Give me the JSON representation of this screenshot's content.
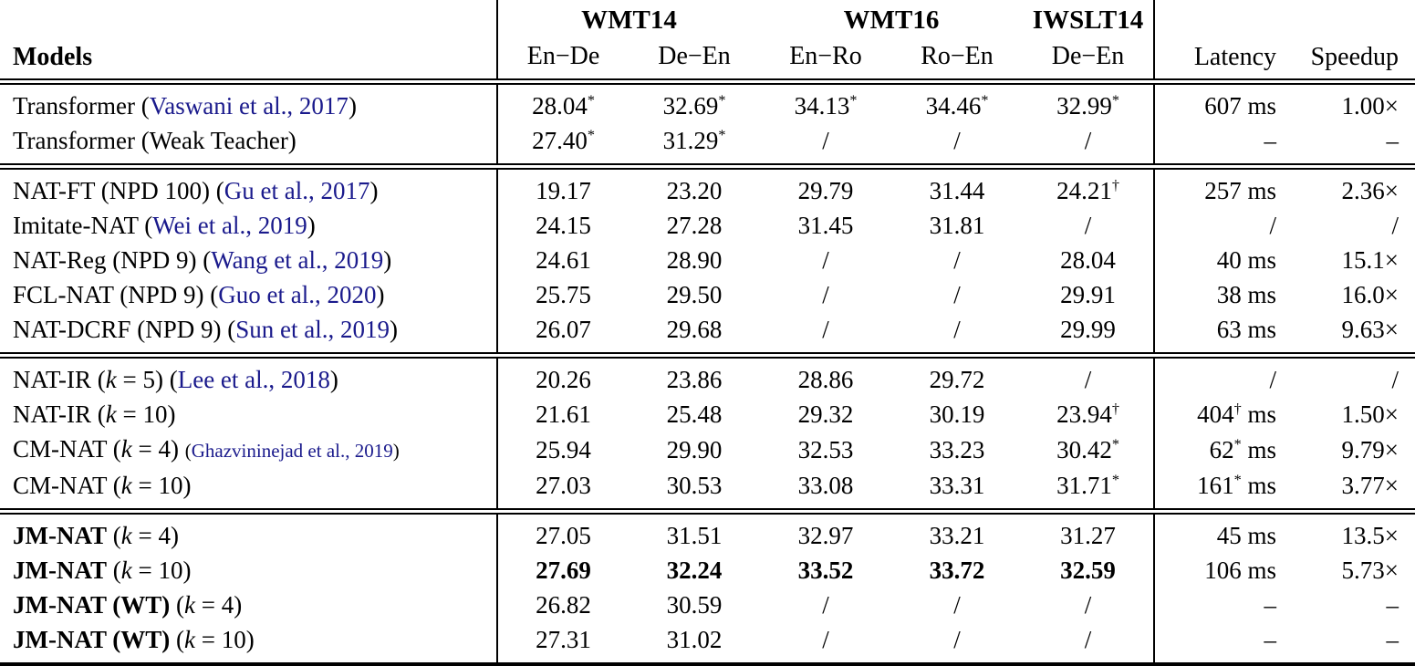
{
  "colors": {
    "citation": "#1a1a8c",
    "text": "#000000",
    "background": "#ffffff"
  },
  "table": {
    "models_label": "Models",
    "latency_label": "Latency",
    "speedup_label": "Speedup",
    "groups": [
      {
        "label": "WMT14",
        "span": 2
      },
      {
        "label": "WMT16",
        "span": 2
      },
      {
        "label": "IWSLT14",
        "span": 1
      }
    ],
    "subcols": [
      "En−De",
      "De−En",
      "En−Ro",
      "Ro−En",
      "De−En"
    ],
    "sections": [
      {
        "rows": [
          {
            "name": [
              {
                "t": "Transformer ("
              },
              {
                "t": "Vaswani et al., 2017",
                "c": "cite"
              },
              {
                "t": ")"
              }
            ],
            "cells": [
              {
                "t": "28.04",
                "s": "*"
              },
              {
                "t": "32.69",
                "s": "*"
              },
              {
                "t": "34.13",
                "s": "*"
              },
              {
                "t": "34.46",
                "s": "*"
              },
              {
                "t": "32.99",
                "s": "*"
              },
              {
                "t": "607",
                "u": "ms"
              },
              {
                "t": "1.00×"
              }
            ]
          },
          {
            "name": [
              {
                "t": "Transformer (Weak Teacher)"
              }
            ],
            "cells": [
              {
                "t": "27.40",
                "s": "*"
              },
              {
                "t": "31.29",
                "s": "*"
              },
              {
                "t": "/"
              },
              {
                "t": "/"
              },
              {
                "t": "/"
              },
              {
                "t": "–"
              },
              {
                "t": "–"
              }
            ]
          }
        ]
      },
      {
        "rows": [
          {
            "name": [
              {
                "t": "NAT-FT (NPD 100) ("
              },
              {
                "t": "Gu et al., 2017",
                "c": "cite"
              },
              {
                "t": ")"
              }
            ],
            "cells": [
              {
                "t": "19.17"
              },
              {
                "t": "23.20"
              },
              {
                "t": "29.79"
              },
              {
                "t": "31.44"
              },
              {
                "t": "24.21",
                "s": "†"
              },
              {
                "t": "257",
                "u": "ms"
              },
              {
                "t": "2.36×"
              }
            ]
          },
          {
            "name": [
              {
                "t": "Imitate-NAT ("
              },
              {
                "t": "Wei et al., 2019",
                "c": "cite"
              },
              {
                "t": ")"
              }
            ],
            "cells": [
              {
                "t": "24.15"
              },
              {
                "t": "27.28"
              },
              {
                "t": "31.45"
              },
              {
                "t": "31.81"
              },
              {
                "t": "/"
              },
              {
                "t": "/"
              },
              {
                "t": "/"
              }
            ]
          },
          {
            "name": [
              {
                "t": "NAT-Reg (NPD 9) ("
              },
              {
                "t": "Wang et al., 2019",
                "c": "cite"
              },
              {
                "t": ")"
              }
            ],
            "cells": [
              {
                "t": "24.61"
              },
              {
                "t": "28.90"
              },
              {
                "t": "/"
              },
              {
                "t": "/"
              },
              {
                "t": "28.04"
              },
              {
                "t": "40",
                "u": "ms"
              },
              {
                "t": "15.1×"
              }
            ]
          },
          {
            "name": [
              {
                "t": "FCL-NAT (NPD 9) ("
              },
              {
                "t": "Guo et al., 2020",
                "c": "cite"
              },
              {
                "t": ")"
              }
            ],
            "cells": [
              {
                "t": "25.75"
              },
              {
                "t": "29.50"
              },
              {
                "t": "/"
              },
              {
                "t": "/"
              },
              {
                "t": "29.91"
              },
              {
                "t": "38",
                "u": "ms"
              },
              {
                "t": "16.0×"
              }
            ]
          },
          {
            "name": [
              {
                "t": "NAT-DCRF (NPD 9) ("
              },
              {
                "t": "Sun et al., 2019",
                "c": "cite"
              },
              {
                "t": ")"
              }
            ],
            "cells": [
              {
                "t": "26.07"
              },
              {
                "t": "29.68"
              },
              {
                "t": "/"
              },
              {
                "t": "/"
              },
              {
                "t": "29.99"
              },
              {
                "t": "63",
                "u": "ms"
              },
              {
                "t": "9.63×"
              }
            ]
          }
        ]
      },
      {
        "rows": [
          {
            "name": [
              {
                "t": "NAT-IR ("
              },
              {
                "t": "k",
                "c": "it"
              },
              {
                "t": " = 5) ("
              },
              {
                "t": "Lee et al., 2018",
                "c": "cite"
              },
              {
                "t": ")"
              }
            ],
            "cells": [
              {
                "t": "20.26"
              },
              {
                "t": "23.86"
              },
              {
                "t": "28.86"
              },
              {
                "t": "29.72"
              },
              {
                "t": "/"
              },
              {
                "t": "/"
              },
              {
                "t": "/"
              }
            ]
          },
          {
            "name": [
              {
                "t": "NAT-IR ("
              },
              {
                "t": "k",
                "c": "it"
              },
              {
                "t": " = 10)"
              }
            ],
            "cells": [
              {
                "t": "21.61"
              },
              {
                "t": "25.48"
              },
              {
                "t": "29.32"
              },
              {
                "t": "30.19"
              },
              {
                "t": "23.94",
                "s": "†"
              },
              {
                "t": "404",
                "s": "†",
                "u": "ms"
              },
              {
                "t": "1.50×"
              }
            ]
          },
          {
            "name": [
              {
                "t": "CM-NAT ("
              },
              {
                "t": "k",
                "c": "it"
              },
              {
                "t": " = 4) "
              },
              {
                "t": "(",
                "c": "sm"
              },
              {
                "t": "Ghazvininejad et al., 2019",
                "c": "cite-sm"
              },
              {
                "t": ")",
                "c": "sm"
              }
            ],
            "cells": [
              {
                "t": "25.94"
              },
              {
                "t": "29.90"
              },
              {
                "t": "32.53"
              },
              {
                "t": "33.23"
              },
              {
                "t": "30.42",
                "s": "*"
              },
              {
                "t": "62",
                "s": "*",
                "u": "ms"
              },
              {
                "t": "9.79×"
              }
            ]
          },
          {
            "name": [
              {
                "t": "CM-NAT ("
              },
              {
                "t": "k",
                "c": "it"
              },
              {
                "t": " = 10)"
              }
            ],
            "cells": [
              {
                "t": "27.03"
              },
              {
                "t": "30.53"
              },
              {
                "t": "33.08"
              },
              {
                "t": "33.31"
              },
              {
                "t": "31.71",
                "s": "*"
              },
              {
                "t": "161",
                "s": "*",
                "u": "ms"
              },
              {
                "t": "3.77×"
              }
            ]
          }
        ]
      },
      {
        "rows": [
          {
            "name": [
              {
                "t": "JM-NAT",
                "c": "b"
              },
              {
                "t": " ("
              },
              {
                "t": "k",
                "c": "it"
              },
              {
                "t": " = 4)"
              }
            ],
            "cells": [
              {
                "t": "27.05"
              },
              {
                "t": "31.51"
              },
              {
                "t": "32.97"
              },
              {
                "t": "33.21"
              },
              {
                "t": "31.27"
              },
              {
                "t": "45",
                "u": "ms"
              },
              {
                "t": "13.5×"
              }
            ]
          },
          {
            "name": [
              {
                "t": "JM-NAT",
                "c": "b"
              },
              {
                "t": " ("
              },
              {
                "t": "k",
                "c": "it"
              },
              {
                "t": " = 10)"
              }
            ],
            "cells": [
              {
                "t": "27.69",
                "b": true
              },
              {
                "t": "32.24",
                "b": true
              },
              {
                "t": "33.52",
                "b": true
              },
              {
                "t": "33.72",
                "b": true
              },
              {
                "t": "32.59",
                "b": true
              },
              {
                "t": "106",
                "u": "ms"
              },
              {
                "t": "5.73×"
              }
            ]
          },
          {
            "name": [
              {
                "t": "JM-NAT (WT)",
                "c": "b"
              },
              {
                "t": " ("
              },
              {
                "t": "k",
                "c": "it"
              },
              {
                "t": " = 4)"
              }
            ],
            "cells": [
              {
                "t": "26.82"
              },
              {
                "t": "30.59"
              },
              {
                "t": "/"
              },
              {
                "t": "/"
              },
              {
                "t": "/"
              },
              {
                "t": "–"
              },
              {
                "t": "–"
              }
            ]
          },
          {
            "name": [
              {
                "t": "JM-NAT (WT)",
                "c": "b"
              },
              {
                "t": " ("
              },
              {
                "t": "k",
                "c": "it"
              },
              {
                "t": " = 10)"
              }
            ],
            "cells": [
              {
                "t": "27.31"
              },
              {
                "t": "31.02"
              },
              {
                "t": "/"
              },
              {
                "t": "/"
              },
              {
                "t": "/"
              },
              {
                "t": "–"
              },
              {
                "t": "–"
              }
            ]
          }
        ]
      }
    ]
  }
}
